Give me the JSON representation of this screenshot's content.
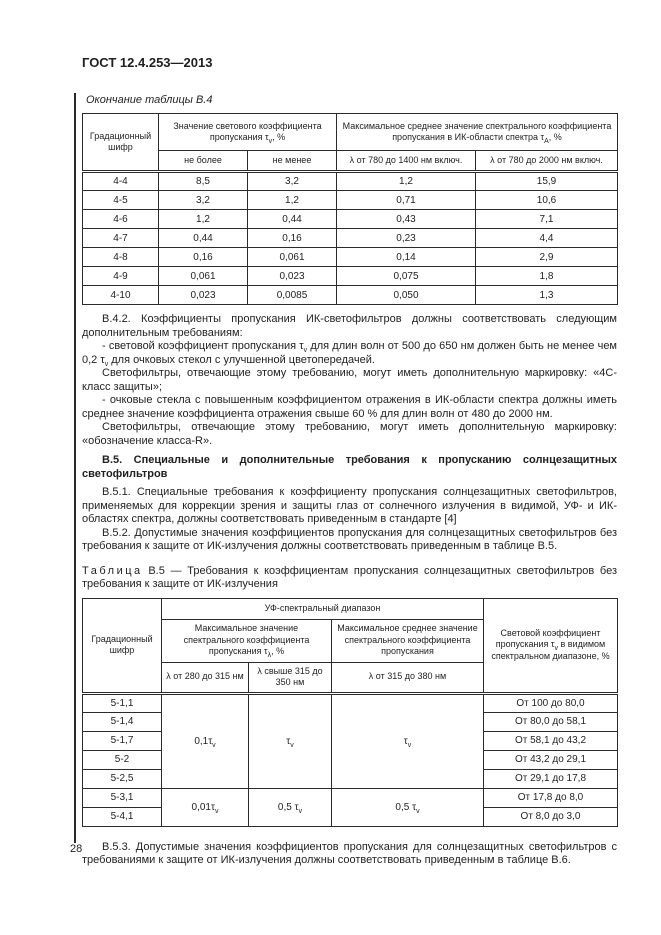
{
  "doc": {
    "standard_number": "ГОСТ 12.4.253—2013",
    "page_number": "28"
  },
  "table_b4": {
    "continuation_caption": "Окончание таблицы В.4",
    "header": {
      "grade_code": "Градационный шифр",
      "light_group": "Значение светового коэффициента пропускания τ<sub>v</sub>, %",
      "not_more": "не более",
      "not_less": "не менее",
      "ir_group": "Максимальное среднее значение спектрального коэффициента пропускания в ИК-области спектра τ<sub>А</sub>, %",
      "range_1400": "λ от 780 до 1400 нм включ.",
      "range_2000": "λ от 780 до 2000 нм включ."
    },
    "rows": [
      [
        "4-4",
        "8,5",
        "3,2",
        "1,2",
        "15,9"
      ],
      [
        "4-5",
        "3,2",
        "1,2",
        "0,71",
        "10,6"
      ],
      [
        "4-6",
        "1,2",
        "0,44",
        "0,43",
        "7,1"
      ],
      [
        "4-7",
        "0,44",
        "0,16",
        "0,23",
        "4,4"
      ],
      [
        "4-8",
        "0,16",
        "0,061",
        "0,14",
        "2,9"
      ],
      [
        "4-9",
        "0,061",
        "0,023",
        "0,075",
        "1,8"
      ],
      [
        "4-10",
        "0,023",
        "0,0085",
        "0,050",
        "1,3"
      ]
    ]
  },
  "text": {
    "p_b42": "В.4.2. Коэффициенты пропускания ИК-светофильтров должны соответствовать следующим дополнительным требованиям:",
    "p_b42_item1": "- световой коэффициент пропускания τ<sub>v</sub> для длин волн от 500 до 650 нм должен быть не менее чем 0,2 τ<sub>v</sub> для очковых стекол с улучшенной цветопередачей.",
    "p_b42_note1": "Светофильтры, отвечающие этому требованию, могут иметь дополнительную маркировку: «4С-класс защиты»;",
    "p_b42_item2": "- очковые стекла с повышенным коэффициентом отражения в ИК-области спектра должны иметь среднее значение коэффициента отражения свыше 60 % для длин волн от 480 до 2000 нм.",
    "p_b42_note2": "Светофильтры, отвечающие этому требованию, могут иметь дополнительную маркировку: «обозначение класса-R».",
    "h_b5": "В.5. Специальные и дополнительные требования к пропусканию солнцезащитных светофильтров",
    "p_b51": "В.5.1. Специальные требования к коэффициенту пропускания солнцезащитных светофильтров, применяемых для коррекции зрения и защиты глаз от солнечного излучения в видимой, УФ- и ИК-областях спектра, должны соответствовать приведенным в стандарте [4]",
    "p_b52": "В.5.2. Допустимые значения коэффициентов пропускания для солнцезащитных светофильтров без требования к защите от ИК-излучения должны соответствовать приведенным в таблице В.5.",
    "p_b53": "В.5.3. Допустимые значения коэффициентов пропускания для солнцезащитных светофильтров с требованиями к защите от ИК-излучения должны соответствовать приведенным в таблице В.6."
  },
  "table_b5": {
    "caption_label": "Таблица",
    "caption_number": "В.5",
    "caption_text": "— Требования к коэффициентам пропускания солнцезащитных светофильтров без требования к защите от ИК-излучения",
    "header": {
      "grade_code": "Градационный шифр",
      "uv_group": "УФ-спектральный диапазон",
      "max_spectral": "Максимальное значение спектрального коэффициента пропускания τ<sub>λ</sub>, %",
      "max_avg": "Максимальное среднее значение спектрального коэффициента пропускания",
      "range_280_315": "λ от 280 до 315 нм",
      "range_315_350": "λ свыше 315 до 350 нм",
      "range_315_380": "λ от 315 до 380 нм",
      "light_col": "Световой коэффициент пропускания τ<sub>v</sub> в видимом спектральном диапазоне, %"
    },
    "group1": {
      "max_280_315": "0,1τ<sub>v</sub>",
      "max_315_350": "τ<sub>v</sub>",
      "avg_315_380": "τ<sub>v</sub>"
    },
    "group2": {
      "max_280_315": "0,01τ<sub>v</sub>",
      "max_315_350": "0,5 τ<sub>v</sub>",
      "avg_315_380": "0,5 τ<sub>v</sub>"
    },
    "rows": [
      {
        "code": "5-1,1",
        "range": "От 100 до 80,0"
      },
      {
        "code": "5-1,4",
        "range": "От 80,0 до 58,1"
      },
      {
        "code": "5-1,7",
        "range": "От 58,1 до 43,2"
      },
      {
        "code": "5-2",
        "range": "От 43,2 до 29,1"
      },
      {
        "code": "5-2,5",
        "range": "От 29,1 до 17,8"
      },
      {
        "code": "5-3,1",
        "range": "От 17,8 до 8,0"
      },
      {
        "code": "5-4,1",
        "range": "От 8,0 до 3,0"
      }
    ]
  }
}
